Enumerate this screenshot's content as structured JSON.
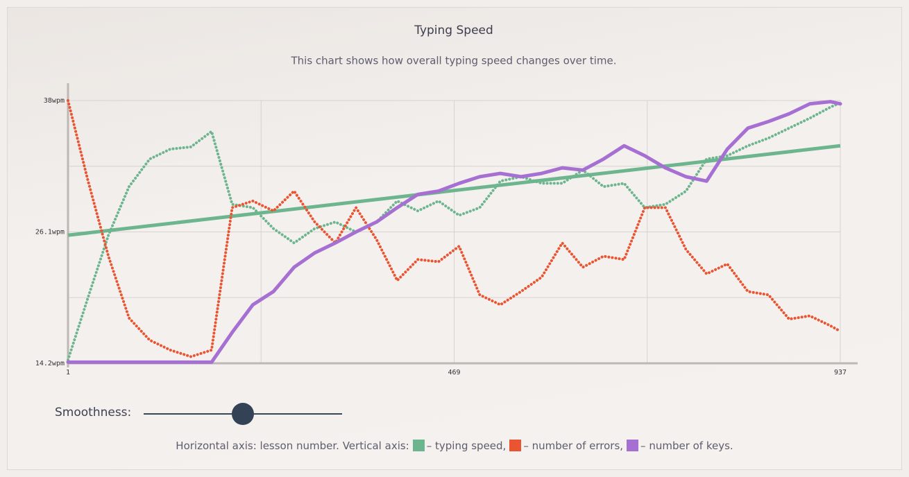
{
  "chart_data": {
    "type": "line",
    "title": "Typing Speed",
    "subtitle": "This chart shows how overall typing speed changes over time.",
    "caption": "Horizontal axis: lesson number. Vertical axis:",
    "x": [
      1,
      25,
      50,
      75,
      100,
      125,
      150,
      175,
      200,
      225,
      250,
      275,
      300,
      325,
      350,
      375,
      400,
      425,
      450,
      475,
      500,
      525,
      550,
      575,
      600,
      625,
      650,
      675,
      700,
      725,
      750,
      775,
      800,
      825,
      850,
      875,
      900,
      925,
      937
    ],
    "series": [
      {
        "name": "– typing speed,",
        "color": "#6db58e",
        "style": "dotted",
        "values": [
          14.5,
          20.1,
          25.8,
          30.2,
          32.7,
          33.6,
          33.8,
          35.2,
          28.6,
          28.3,
          26.4,
          25.1,
          26.4,
          27.0,
          26.1,
          27.0,
          28.9,
          28.0,
          28.9,
          27.6,
          28.3,
          30.7,
          31.1,
          30.5,
          30.5,
          31.7,
          30.2,
          30.5,
          28.3,
          28.6,
          29.8,
          32.7,
          33.0,
          33.9,
          34.6,
          35.5,
          36.4,
          37.4,
          37.8
        ]
      },
      {
        "name": "– number of errors,",
        "color": "#ea5430",
        "style": "dotted",
        "values": [
          38.0,
          30.8,
          23.9,
          18.3,
          16.3,
          15.4,
          14.8,
          15.4,
          28.3,
          28.9,
          28.0,
          29.8,
          27.0,
          25.1,
          28.3,
          25.4,
          21.7,
          23.6,
          23.4,
          24.8,
          20.4,
          19.5,
          20.7,
          22.0,
          25.1,
          22.9,
          23.9,
          23.6,
          28.3,
          28.3,
          24.5,
          22.3,
          23.2,
          20.7,
          20.4,
          18.2,
          18.5,
          17.6,
          17.1
        ]
      },
      {
        "name": "– number of keys.",
        "color": "#a66fd2",
        "style": "solid",
        "values": [
          14.3,
          14.3,
          14.3,
          14.3,
          14.3,
          14.3,
          14.3,
          14.3,
          17.0,
          19.5,
          20.7,
          22.9,
          24.2,
          25.1,
          26.1,
          27.0,
          28.3,
          29.5,
          29.8,
          30.5,
          31.1,
          31.4,
          31.1,
          31.4,
          31.9,
          31.7,
          32.7,
          33.9,
          33.0,
          31.9,
          31.1,
          30.7,
          33.6,
          35.5,
          36.1,
          36.8,
          37.7,
          37.9,
          37.7
        ]
      }
    ],
    "trend": {
      "color": "#6db58e",
      "values": [
        25.8,
        33.9
      ]
    },
    "xlim": [
      1,
      937
    ],
    "xticks": [
      1,
      469,
      937
    ],
    "ylim": [
      14.2,
      38
    ],
    "yticks": [
      {
        "value": 14.2,
        "label": "14.2wpm"
      },
      {
        "value": 26.1,
        "label": "26.1wpm"
      },
      {
        "value": 38,
        "label": "38wpm"
      }
    ],
    "grid": true
  },
  "controls": {
    "smoothness_label": "Smoothness:"
  }
}
